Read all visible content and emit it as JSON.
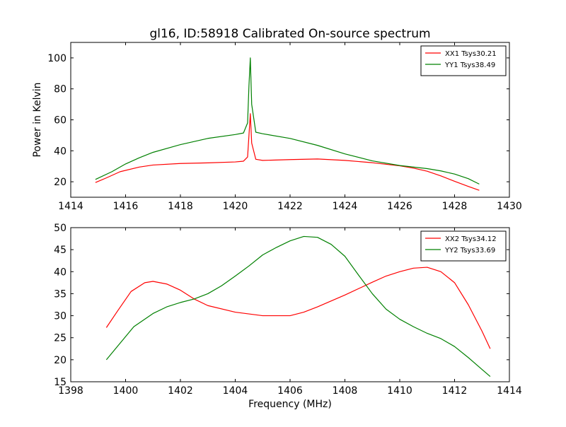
{
  "figure": {
    "title": "gl16, ID:58918 Calibrated On-source spectrum"
  },
  "chart_data": [
    {
      "type": "line",
      "title": "gl16, ID:58918 Calibrated On-source spectrum",
      "xlabel": "",
      "ylabel": "Power in Kelvin",
      "xlim": [
        1414,
        1430
      ],
      "ylim": [
        10,
        110
      ],
      "xticks": [
        1414,
        1416,
        1418,
        1420,
        1422,
        1424,
        1426,
        1428,
        1430
      ],
      "yticks": [
        20,
        40,
        60,
        80,
        100
      ],
      "grid": false,
      "legend": "top-right",
      "series": [
        {
          "name": "XX1 Tsys30.21",
          "color": "#ff0000",
          "x": [
            1414.9,
            1415.3,
            1415.8,
            1416.5,
            1417.0,
            1418.0,
            1419.0,
            1420.0,
            1420.3,
            1420.45,
            1420.5,
            1420.55,
            1420.6,
            1420.75,
            1421.0,
            1422.0,
            1423.0,
            1424.0,
            1425.0,
            1426.0,
            1426.5,
            1427.0,
            1427.5,
            1428.0,
            1428.5,
            1428.9
          ],
          "y": [
            19.5,
            22.5,
            26.5,
            29.5,
            30.8,
            31.8,
            32.2,
            32.8,
            33.3,
            36.0,
            50.0,
            64.0,
            45.0,
            34.5,
            33.8,
            34.3,
            34.7,
            33.8,
            32.3,
            30.3,
            28.8,
            26.8,
            23.8,
            20.3,
            17.0,
            14.5
          ]
        },
        {
          "name": "YY1 Tsys38.49",
          "color": "#008000",
          "x": [
            1414.9,
            1415.5,
            1416.0,
            1416.5,
            1417.0,
            1418.0,
            1419.0,
            1420.0,
            1420.3,
            1420.45,
            1420.5,
            1420.55,
            1420.6,
            1420.75,
            1421.0,
            1422.0,
            1423.0,
            1424.0,
            1425.0,
            1426.0,
            1427.0,
            1427.5,
            1428.0,
            1428.5,
            1428.9
          ],
          "y": [
            21.5,
            26.5,
            31.5,
            35.5,
            39.0,
            44.0,
            48.0,
            50.5,
            51.5,
            58.0,
            82.0,
            100.0,
            70.0,
            52.0,
            51.0,
            48.0,
            43.5,
            38.0,
            33.5,
            30.5,
            28.5,
            27.0,
            25.0,
            22.0,
            18.5
          ]
        }
      ]
    },
    {
      "type": "line",
      "title": "",
      "xlabel": "Frequency (MHz)",
      "ylabel": "",
      "xlim": [
        1398,
        1414
      ],
      "ylim": [
        15,
        50
      ],
      "xticks": [
        1398,
        1400,
        1402,
        1404,
        1406,
        1408,
        1410,
        1412,
        1414
      ],
      "yticks": [
        15,
        20,
        25,
        30,
        35,
        40,
        45,
        50
      ],
      "grid": false,
      "legend": "top-right",
      "series": [
        {
          "name": "XX2 Tsys34.12",
          "color": "#ff0000",
          "x": [
            1399.3,
            1399.7,
            1400.2,
            1400.7,
            1401.0,
            1401.5,
            1402.0,
            1402.5,
            1403.0,
            1404.0,
            1405.0,
            1406.0,
            1406.5,
            1407.0,
            1408.0,
            1409.0,
            1409.5,
            1410.0,
            1410.5,
            1411.0,
            1411.5,
            1412.0,
            1412.5,
            1413.0,
            1413.3
          ],
          "y": [
            27.3,
            31.0,
            35.5,
            37.5,
            37.8,
            37.2,
            35.8,
            33.8,
            32.3,
            30.8,
            30.0,
            30.0,
            30.8,
            32.0,
            34.7,
            37.6,
            39.0,
            40.0,
            40.8,
            41.0,
            40.0,
            37.5,
            32.5,
            26.5,
            22.5
          ]
        },
        {
          "name": "YY2 Tsys33.69",
          "color": "#008000",
          "x": [
            1399.3,
            1399.7,
            1400.3,
            1401.0,
            1401.5,
            1402.0,
            1402.5,
            1403.0,
            1403.5,
            1404.0,
            1404.5,
            1405.0,
            1405.5,
            1406.0,
            1406.5,
            1407.0,
            1407.5,
            1408.0,
            1408.5,
            1409.0,
            1409.5,
            1410.0,
            1410.5,
            1411.0,
            1411.5,
            1412.0,
            1412.5,
            1413.0,
            1413.3
          ],
          "y": [
            20.0,
            23.0,
            27.5,
            30.5,
            32.0,
            33.0,
            33.8,
            35.0,
            36.8,
            39.0,
            41.3,
            43.8,
            45.5,
            47.0,
            48.0,
            47.8,
            46.2,
            43.5,
            39.2,
            35.0,
            31.5,
            29.2,
            27.5,
            26.0,
            24.8,
            23.0,
            20.5,
            17.8,
            16.2
          ]
        }
      ]
    }
  ]
}
